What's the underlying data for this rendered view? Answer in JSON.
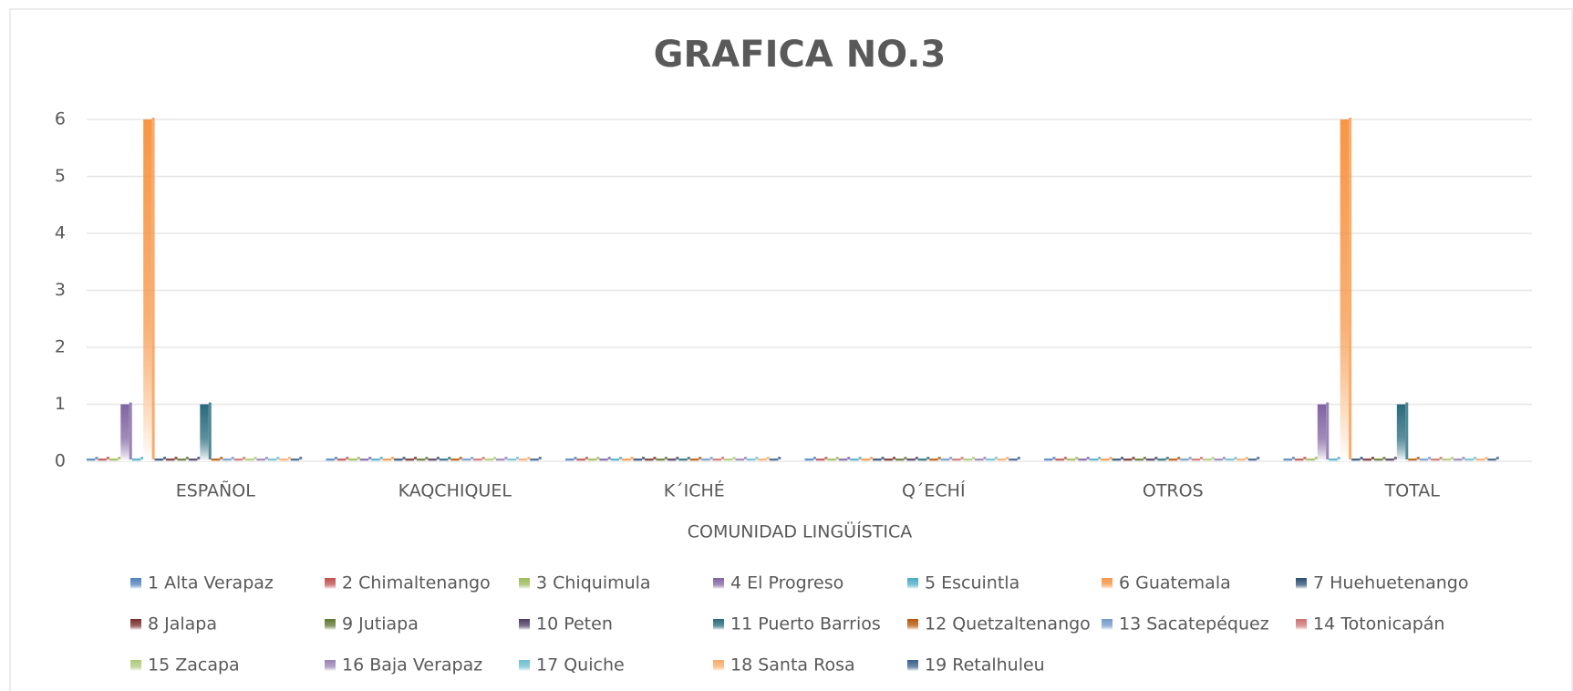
{
  "chart_data": {
    "type": "bar",
    "title": "GRAFICA NO.3",
    "x_label": "COMUNIDAD LINGÜÍSTICA",
    "categories": [
      "ESPAÑOL",
      "KAQCHIQUEL",
      "K´ICHÉ",
      "Q´ECHÍ",
      "OTROS",
      "TOTAL"
    ],
    "ylim": [
      0,
      6
    ],
    "yticks": [
      0,
      1,
      2,
      3,
      4,
      5,
      6
    ],
    "grid": true,
    "legend": "bottom",
    "series": [
      {
        "name": "1 Alta Verapaz",
        "color": "#4f81bd",
        "values": [
          0,
          0,
          0,
          0,
          0,
          0
        ]
      },
      {
        "name": "2 Chimaltenango",
        "color": "#c0504d",
        "values": [
          0,
          0,
          0,
          0,
          0,
          0
        ]
      },
      {
        "name": "3 Chiquimula",
        "color": "#9bbb59",
        "values": [
          0,
          0,
          0,
          0,
          0,
          0
        ]
      },
      {
        "name": "4 El Progreso",
        "color": "#8064a2",
        "values": [
          1,
          0,
          0,
          0,
          0,
          1
        ]
      },
      {
        "name": "5 Escuintla",
        "color": "#4bacc6",
        "values": [
          0,
          0,
          0,
          0,
          0,
          0
        ]
      },
      {
        "name": "6 Guatemala",
        "color": "#f79646",
        "values": [
          6,
          0,
          0,
          0,
          0,
          6
        ]
      },
      {
        "name": "7 Huehuetenango",
        "color": "#2c4d75",
        "values": [
          0,
          0,
          0,
          0,
          0,
          0
        ]
      },
      {
        "name": "8 Jalapa",
        "color": "#772c2a",
        "values": [
          0,
          0,
          0,
          0,
          0,
          0
        ]
      },
      {
        "name": "9 Jutiapa",
        "color": "#5f7530",
        "values": [
          0,
          0,
          0,
          0,
          0,
          0
        ]
      },
      {
        "name": "10 Peten",
        "color": "#4d3b62",
        "values": [
          0,
          0,
          0,
          0,
          0,
          0
        ]
      },
      {
        "name": "11 Puerto Barrios",
        "color": "#276a7c",
        "values": [
          1,
          0,
          0,
          0,
          0,
          1
        ]
      },
      {
        "name": "12 Quetzaltenango",
        "color": "#b65708",
        "values": [
          0,
          0,
          0,
          0,
          0,
          0
        ]
      },
      {
        "name": "13 Sacatepéquez",
        "color": "#729aca",
        "values": [
          0,
          0,
          0,
          0,
          0,
          0
        ]
      },
      {
        "name": "14 Totonicapán",
        "color": "#cd7371",
        "values": [
          0,
          0,
          0,
          0,
          0,
          0
        ]
      },
      {
        "name": "15 Zacapa",
        "color": "#afc97a",
        "values": [
          0,
          0,
          0,
          0,
          0,
          0
        ]
      },
      {
        "name": "16 Baja Verapaz",
        "color": "#9983b5",
        "values": [
          0,
          0,
          0,
          0,
          0,
          0
        ]
      },
      {
        "name": "17 Quiche",
        "color": "#6fbdd1",
        "values": [
          0,
          0,
          0,
          0,
          0,
          0
        ]
      },
      {
        "name": "18 Santa Rosa",
        "color": "#f9ab6b",
        "values": [
          0,
          0,
          0,
          0,
          0,
          0
        ]
      },
      {
        "name": "19 Retalhuleu",
        "color": "#3a5f8c",
        "values": [
          0,
          0,
          0,
          0,
          0,
          0
        ]
      }
    ]
  }
}
